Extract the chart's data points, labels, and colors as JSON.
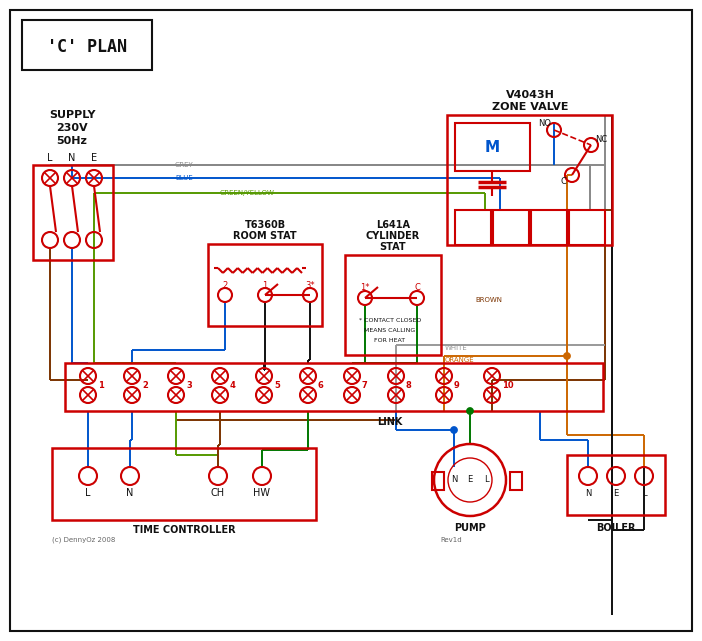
{
  "title": "'C' PLAN",
  "red": "#cc0000",
  "blue": "#0055cc",
  "green": "#007700",
  "grey": "#888888",
  "brown": "#7b3300",
  "orange": "#cc6600",
  "black": "#111111",
  "gy": "#559900",
  "white_wire": "#999999",
  "footer_left": "(c) DennyOz 2008",
  "footer_right": "Rev1d"
}
